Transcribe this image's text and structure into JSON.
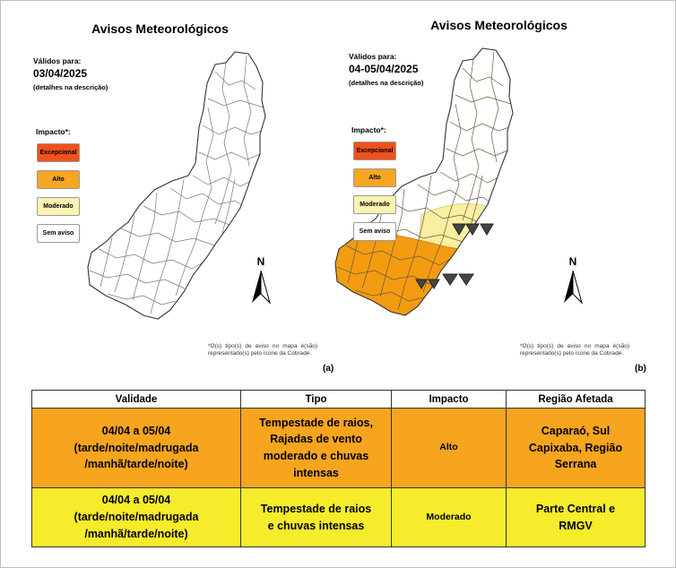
{
  "panels": [
    {
      "title": "Avisos Meteorológicos",
      "valid_label": "Válidos para:",
      "date": "03/04/2025",
      "details": "(detalhes na descrição)",
      "impact_label": "Impacto*:",
      "north": "N",
      "note": "*O(s) tipo(s) de aviso no mapa é(são) representado(s) pelo ícone da Cobrade.",
      "fig_label": "(a)"
    },
    {
      "title": "Avisos Meteorológicos",
      "valid_label": "Válidos para:",
      "date": "04-05/04/2025",
      "details": "(detalhes na descrição)",
      "impact_label": "Impacto*:",
      "north": "N",
      "note": "*O(s) tipo(s) de aviso no mapa é(são) representado(s) pelo ícone da Cobrade.",
      "fig_label": "(b)"
    }
  ],
  "legend": [
    {
      "label": "Excepcional",
      "color": "#f0521a"
    },
    {
      "label": "Alto",
      "color": "#f7a623"
    },
    {
      "label": "Moderado",
      "color": "#fbf3b2"
    },
    {
      "label": "Sem aviso",
      "color": "#ffffff"
    }
  ],
  "map_colors": {
    "alto": "#f39c12",
    "moderado": "#f8efa0",
    "outline": "#444444"
  },
  "table": {
    "headers": [
      "Validade",
      "Tipo",
      "Impacto",
      "Região Afetada"
    ],
    "rows": [
      {
        "bg": "#f7a51f",
        "validade": [
          "04/04 a 05/04",
          "(tarde/noite/madrugada",
          "/manhã/tarde/noite)"
        ],
        "tipo": [
          "Tempestade de raios,",
          "Rajadas de vento",
          "moderado e chuvas",
          "intensas"
        ],
        "impacto": "Alto",
        "regiao": [
          "Caparaó, Sul",
          "Capixaba, Região",
          "Serrana"
        ]
      },
      {
        "bg": "#f6ec2b",
        "validade": [
          "04/04 a 05/04",
          "(tarde/noite/madrugada",
          "/manhã/tarde/noite)"
        ],
        "tipo": [
          "Tempestade de raios",
          "e chuvas intensas"
        ],
        "impacto": "Moderado",
        "regiao": [
          "Parte Central e",
          "RMGV"
        ]
      }
    ]
  }
}
